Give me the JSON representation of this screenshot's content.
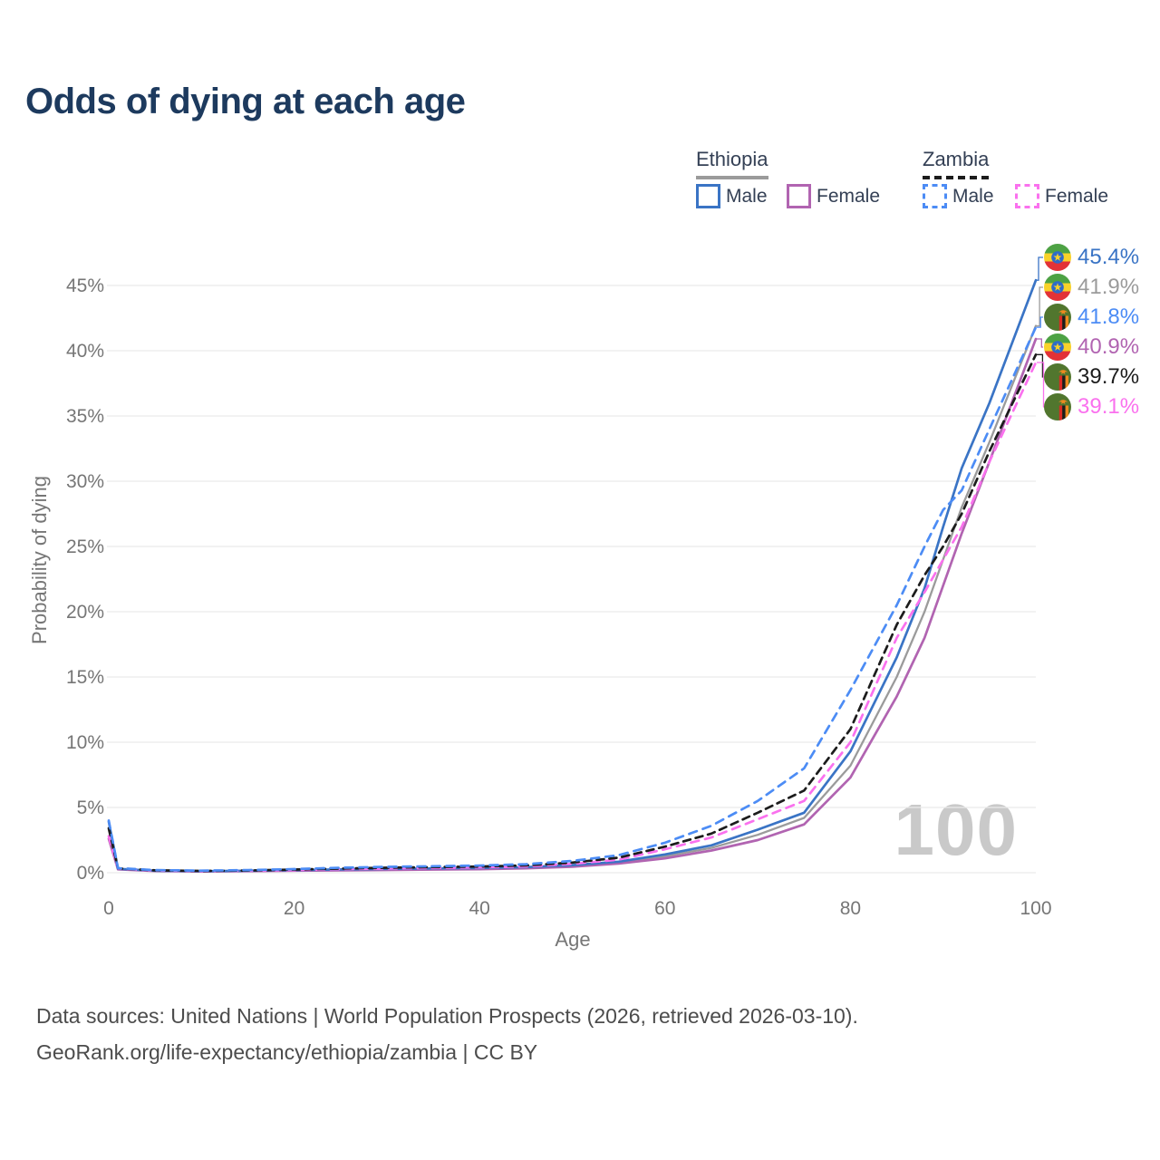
{
  "title": "Odds of dying at each age",
  "watermark": "100",
  "legend": {
    "groups": [
      {
        "label": "Ethiopia",
        "line_style": "solid",
        "underline_color": "#9b9b9b",
        "items": [
          {
            "label": "Male",
            "color": "#3a74c5"
          },
          {
            "label": "Female",
            "color": "#b164b1"
          }
        ]
      },
      {
        "label": "Zambia",
        "line_style": "dashed",
        "underline_color": "#1c1c1c",
        "items": [
          {
            "label": "Male",
            "color": "#4c8cf5"
          },
          {
            "label": "Female",
            "color": "#fa71ee"
          }
        ]
      }
    ]
  },
  "y_axis": {
    "title": "Probability of dying",
    "ticks": [
      "0%",
      "5%",
      "10%",
      "15%",
      "20%",
      "25%",
      "30%",
      "35%",
      "40%",
      "45%"
    ]
  },
  "x_axis": {
    "title": "Age",
    "ticks": [
      "0",
      "20",
      "40",
      "60",
      "80",
      "100"
    ]
  },
  "end_labels": [
    {
      "flag": "ethiopia",
      "value": "45.4%",
      "color": "#3a74c5",
      "series": "Ethiopia Male"
    },
    {
      "flag": "ethiopia",
      "value": "41.9%",
      "color": "#9b9b9b",
      "series": "Ethiopia Both sexes"
    },
    {
      "flag": "zambia",
      "value": "41.8%",
      "color": "#4c8cf5",
      "series": "Zambia Male"
    },
    {
      "flag": "ethiopia",
      "value": "40.9%",
      "color": "#b164b1",
      "series": "Ethiopia Female"
    },
    {
      "flag": "zambia",
      "value": "39.7%",
      "color": "#1c1c1c",
      "series": "Zambia Both sexes"
    },
    {
      "flag": "zambia",
      "value": "39.1%",
      "color": "#fa71ee",
      "series": "Zambia Female"
    }
  ],
  "footer": {
    "line1": "Data sources: United Nations | World Population Prospects (2026, retrieved 2026-03-10).",
    "line2": "GeoRank.org/life-expectancy/ethiopia/zambia | CC BY"
  },
  "chart_data": {
    "type": "line",
    "title": "Odds of dying at each age",
    "xlabel": "Age",
    "ylabel": "Probability of dying",
    "xlim": [
      0,
      100
    ],
    "ylim": [
      0,
      47
    ],
    "grid": "horizontal",
    "legend_position": "top-right",
    "x": [
      0,
      1,
      5,
      10,
      15,
      20,
      25,
      30,
      35,
      40,
      45,
      50,
      55,
      60,
      65,
      70,
      75,
      80,
      85,
      88,
      90,
      92,
      95,
      100
    ],
    "series": [
      {
        "name": "Ethiopia Both sexes",
        "color": "#9b9b9b",
        "style": "solid",
        "line_dash": "",
        "width": 2.3,
        "values": [
          3.3,
          0.28,
          0.14,
          0.11,
          0.14,
          0.18,
          0.22,
          0.26,
          0.29,
          0.32,
          0.39,
          0.52,
          0.78,
          1.25,
          1.9,
          2.9,
          4.2,
          8.2,
          15.0,
          20.0,
          24.0,
          28.0,
          33.0,
          41.9
        ],
        "end_value_pct": 41.9
      },
      {
        "name": "Ethiopia Female",
        "color": "#b164b1",
        "style": "solid",
        "line_dash": "",
        "width": 2.7,
        "values": [
          2.6,
          0.26,
          0.13,
          0.1,
          0.12,
          0.15,
          0.18,
          0.21,
          0.24,
          0.27,
          0.34,
          0.46,
          0.7,
          1.1,
          1.7,
          2.5,
          3.7,
          7.3,
          13.5,
          18.0,
          22.0,
          26.0,
          31.5,
          40.9
        ],
        "end_value_pct": 40.9
      },
      {
        "name": "Ethiopia Male",
        "color": "#3a74c5",
        "style": "solid",
        "line_dash": "",
        "width": 2.7,
        "values": [
          3.9,
          0.3,
          0.15,
          0.12,
          0.15,
          0.2,
          0.25,
          0.29,
          0.33,
          0.36,
          0.43,
          0.58,
          0.85,
          1.4,
          2.1,
          3.3,
          4.6,
          9.3,
          16.5,
          21.8,
          26.5,
          31.0,
          36.0,
          45.4
        ],
        "end_value_pct": 45.4
      },
      {
        "name": "Zambia Female",
        "color": "#fa71ee",
        "style": "dashed",
        "line_dash": "9 7",
        "width": 2.7,
        "values": [
          2.8,
          0.31,
          0.17,
          0.13,
          0.15,
          0.2,
          0.27,
          0.32,
          0.36,
          0.4,
          0.48,
          0.68,
          1.0,
          1.8,
          2.7,
          4.1,
          5.5,
          10.0,
          18.0,
          21.5,
          24.0,
          26.5,
          31.5,
          39.1
        ],
        "end_value_pct": 39.1
      },
      {
        "name": "Zambia Both sexes",
        "color": "#1c1c1c",
        "style": "dashed",
        "line_dash": "8 6",
        "width": 2.7,
        "values": [
          3.4,
          0.33,
          0.18,
          0.14,
          0.17,
          0.24,
          0.32,
          0.38,
          0.43,
          0.47,
          0.56,
          0.78,
          1.15,
          2.0,
          3.0,
          4.6,
          6.3,
          11.0,
          19.0,
          22.8,
          25.0,
          27.5,
          32.3,
          39.7
        ],
        "end_value_pct": 39.7
      },
      {
        "name": "Zambia Male",
        "color": "#4c8cf5",
        "style": "dashed",
        "line_dash": "9 7",
        "width": 2.7,
        "values": [
          4.0,
          0.35,
          0.2,
          0.16,
          0.2,
          0.28,
          0.38,
          0.45,
          0.5,
          0.55,
          0.65,
          0.9,
          1.35,
          2.3,
          3.6,
          5.5,
          8.0,
          14.0,
          20.5,
          25.0,
          27.8,
          29.3,
          34.0,
          41.8
        ],
        "end_value_pct": 41.8
      }
    ]
  }
}
